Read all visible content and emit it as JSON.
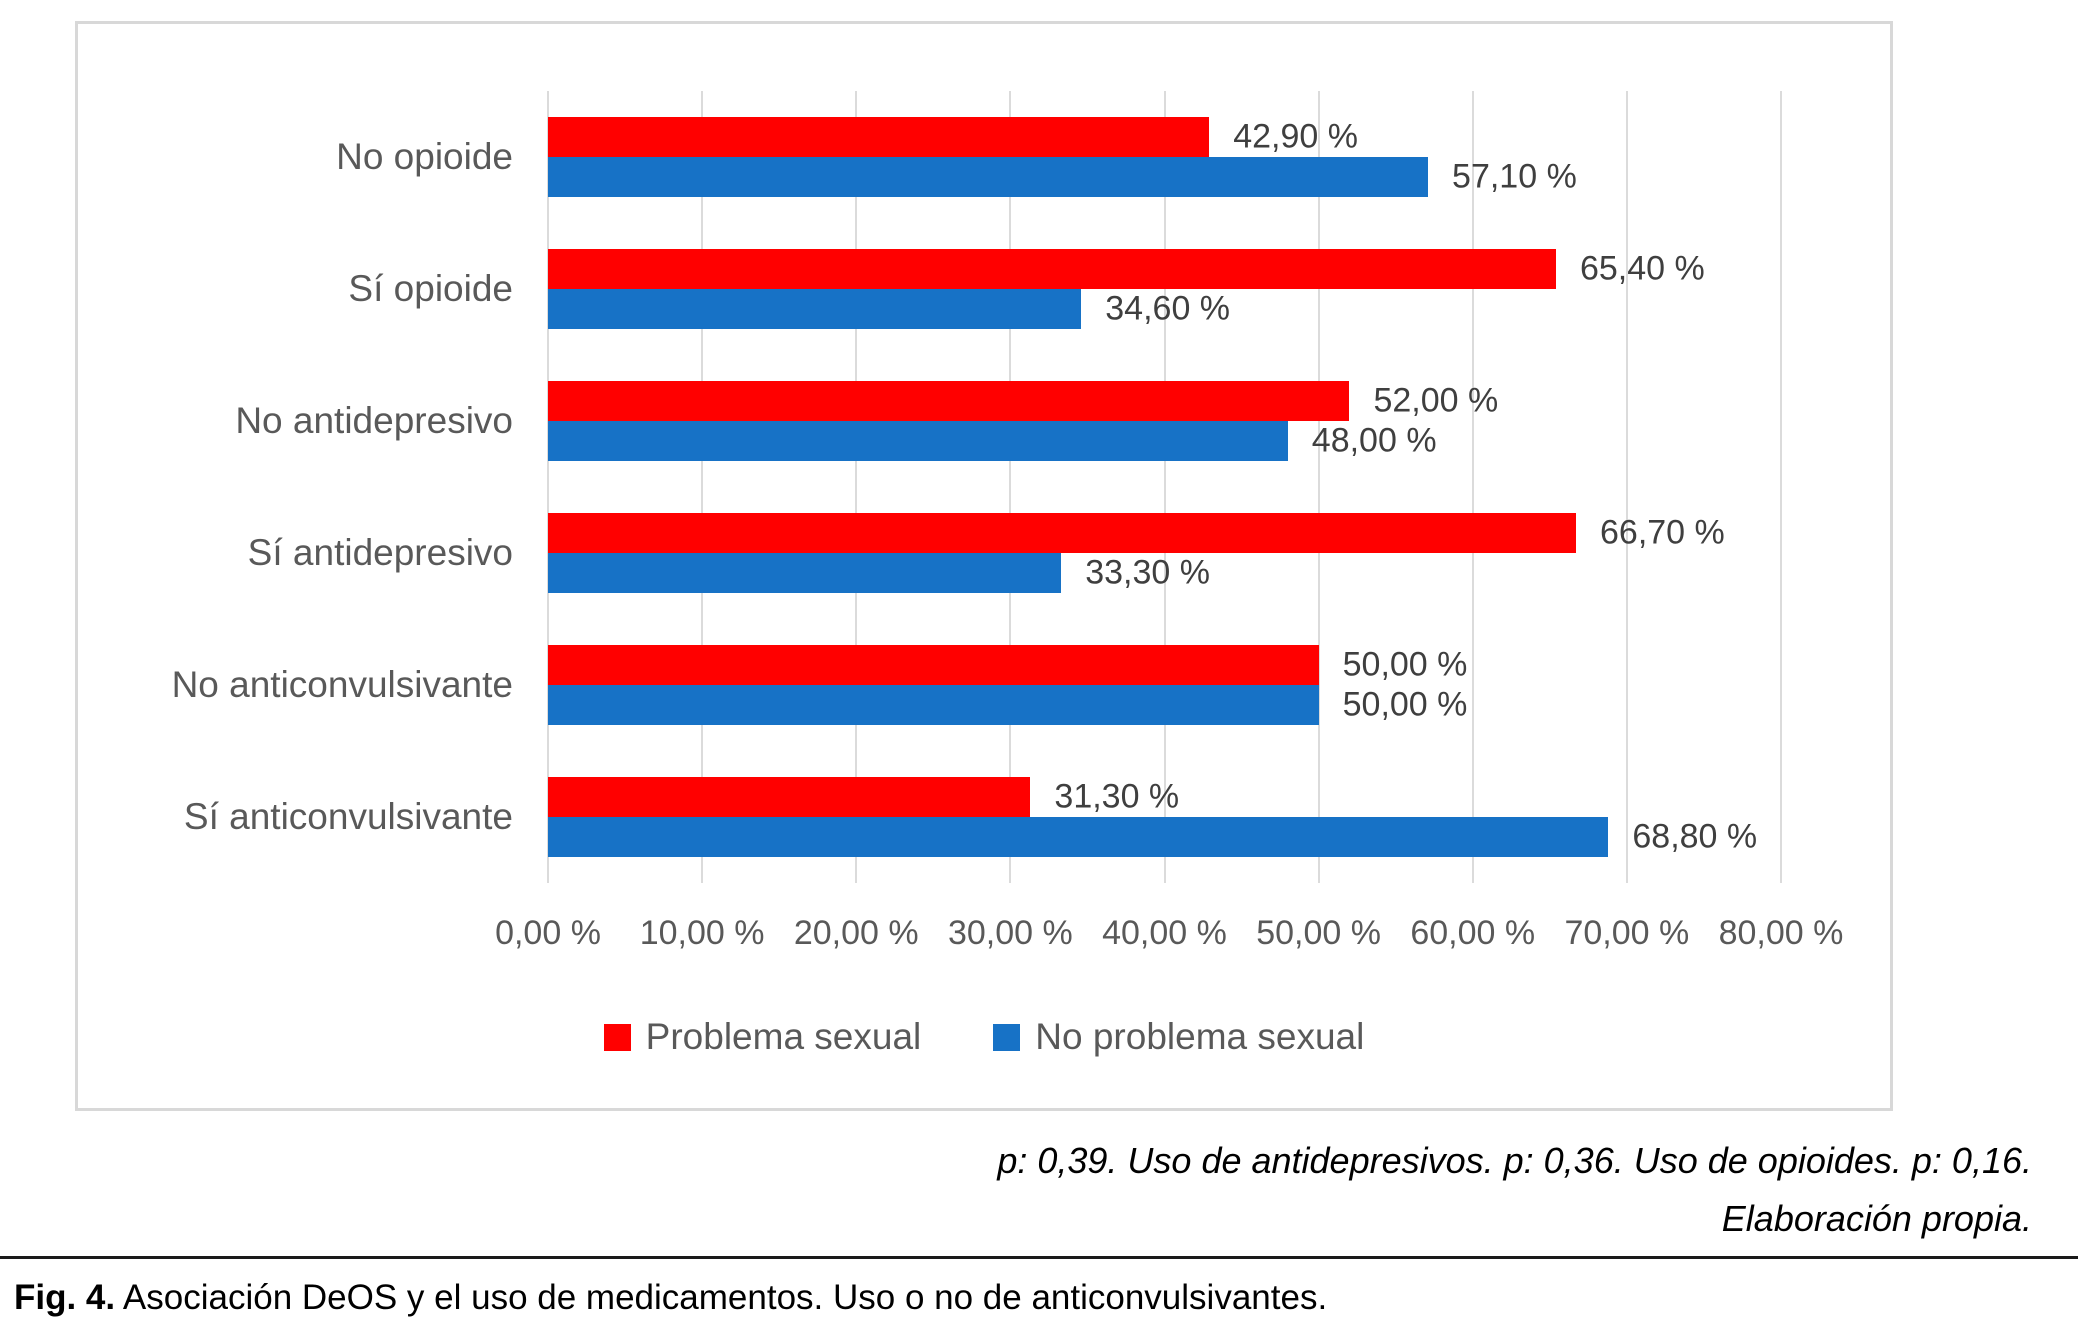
{
  "chart_data": {
    "type": "bar",
    "orientation": "horizontal",
    "title": "",
    "categories": [
      "No opioide",
      "Sí opioide",
      "No antidepresivo",
      "Sí antidepresivo",
      "No anticonvulsivante",
      "Sí anticonvulsivante"
    ],
    "series": [
      {
        "name": "Problema sexual",
        "color": "#FF0000",
        "values": [
          42.9,
          65.4,
          52.0,
          66.7,
          50.0,
          31.3
        ],
        "value_labels": [
          "42,90 %",
          "65,40 %",
          "52,00 %",
          "66,70 %",
          "50,00 %",
          "31,30 %"
        ]
      },
      {
        "name": "No problema sexual",
        "color": "#1772C6",
        "values": [
          57.1,
          34.6,
          48.0,
          33.3,
          50.0,
          68.8
        ],
        "value_labels": [
          "57,10 %",
          "34,60 %",
          "48,00 %",
          "33,30 %",
          "50,00 %",
          "68,80 %"
        ]
      }
    ],
    "x_axis": {
      "min": 0,
      "max": 80,
      "tick_step": 10,
      "tick_labels": [
        "0,00 %",
        "10,00 %",
        "20,00 %",
        "30,00 %",
        "40,00 %",
        "50,00 %",
        "60,00 %",
        "70,00 %",
        "80,00 %"
      ]
    },
    "legend": {
      "position": "bottom",
      "entries": [
        "Problema sexual",
        "No problema sexual"
      ]
    },
    "grid": "vertical"
  },
  "notes": {
    "line1": "p: 0,39. Uso de antidepresivos. p: 0,36. Uso de opioides. p: 0,16.",
    "line2": "Elaboración propia."
  },
  "caption": {
    "label": "Fig. 4.",
    "text": " Asociación DeOS y el uso de medicamentos. Uso o no de anticonvulsivantes."
  },
  "colors": {
    "series_problema": "#FF0000",
    "series_no_problema": "#1772C6",
    "gridline": "#DBDBDB",
    "axis_text": "#595959",
    "data_label_text": "#3F3F3F",
    "chart_border": "#D8D8D8",
    "note_text": "#000000"
  }
}
